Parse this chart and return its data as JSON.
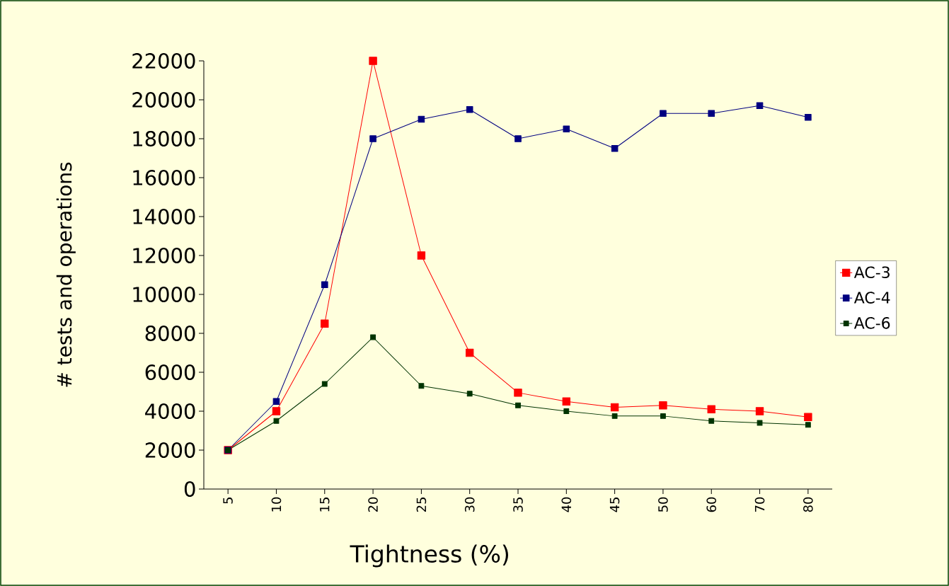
{
  "chart_data": {
    "type": "line",
    "xlabel": "Tightness (%)",
    "ylabel": "# tests and operations",
    "categories": [
      "5",
      "10",
      "15",
      "20",
      "25",
      "30",
      "35",
      "40",
      "45",
      "50",
      "60",
      "70",
      "80"
    ],
    "series": [
      {
        "name": "AC-3",
        "color": "#ff0000",
        "values": [
          2000,
          4000,
          8500,
          22000,
          12000,
          7000,
          4950,
          4500,
          4200,
          4300,
          4100,
          4000,
          3700
        ]
      },
      {
        "name": "AC-4",
        "color": "#000080",
        "values": [
          2000,
          4500,
          10500,
          18000,
          19000,
          19500,
          18000,
          18500,
          17500,
          19300,
          19300,
          19700,
          19100
        ]
      },
      {
        "name": "AC-6",
        "color": "#003300",
        "values": [
          2000,
          3500,
          5400,
          7800,
          5300,
          4900,
          4300,
          4000,
          3750,
          3750,
          3500,
          3400,
          3300
        ]
      }
    ],
    "ylim": [
      0,
      22000
    ],
    "yticks": [
      0,
      2000,
      4000,
      6000,
      8000,
      10000,
      12000,
      14000,
      16000,
      18000,
      20000,
      22000
    ],
    "legend": "right",
    "marker": "square",
    "line_style": "solid"
  }
}
